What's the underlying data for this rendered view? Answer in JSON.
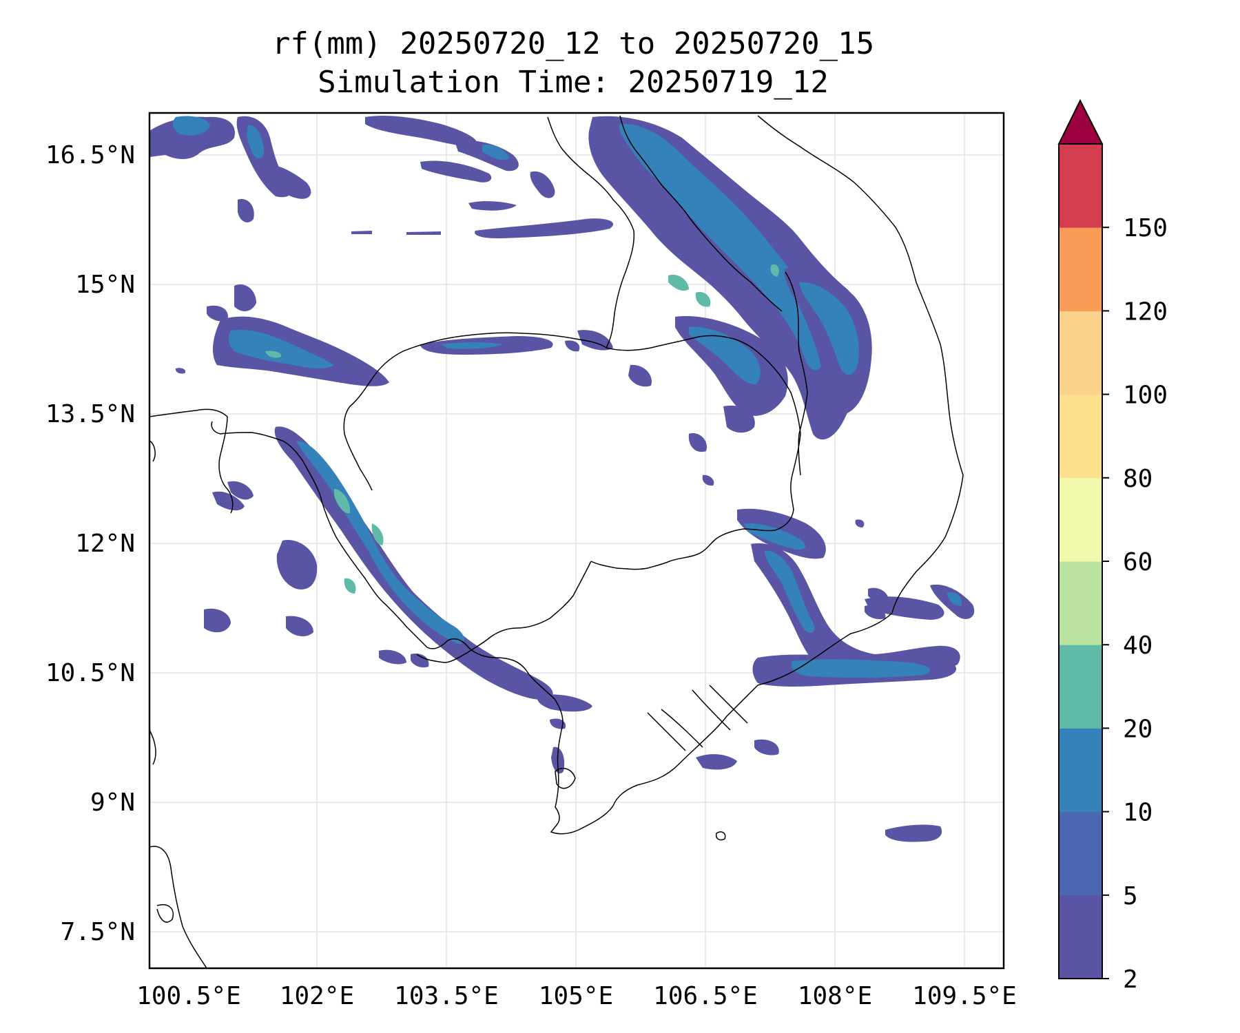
{
  "title": {
    "line1": "rf(mm) 20250720_12 to 20250720_15",
    "line2": "Simulation Time: 20250719_12"
  },
  "map": {
    "lon_range": [
      100.5,
      110.0
    ],
    "lat_range": [
      6.8,
      16.7
    ],
    "lon_ticks": [
      "100.5°E",
      "102°E",
      "103.5°E",
      "105°E",
      "106.5°E",
      "108°E",
      "109.5°E"
    ],
    "lat_ticks": [
      "16.5°N",
      "15°N",
      "13.5°N",
      "12°N",
      "10.5°N",
      "9°N",
      "7.5°N"
    ],
    "grid": true
  },
  "colorbar": {
    "levels": [
      "2",
      "5",
      "10",
      "20",
      "40",
      "60",
      "80",
      "100",
      "120",
      "150"
    ],
    "colors": [
      "#5954a4",
      "#4c67b2",
      "#3581ba",
      "#5fbaa8",
      "#bae3a0",
      "#f2f9ad",
      "#fce08b",
      "#fbd28b",
      "#f99c58",
      "#d53e4f"
    ],
    "extend_color": "#9e0142",
    "units": "mm"
  }
}
